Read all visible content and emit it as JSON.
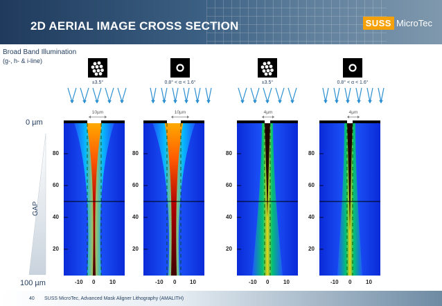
{
  "header": {
    "title": "2D AERIAL IMAGE CROSS SECTION",
    "logo_suss": "SUSS",
    "logo_micro": "MicroTec"
  },
  "illumination": {
    "line1": "Broad Band Illumination",
    "line2": "(g-, h- & i-line)"
  },
  "gap_axis": {
    "top_label": "0 µm",
    "bottom_label": "100 µm",
    "name": "GAP"
  },
  "columns": [
    {
      "aperture": "multi-spot-aperture",
      "angle": "±3.5°",
      "slit": "10µm",
      "beam": "wide"
    },
    {
      "aperture": "ring-aperture",
      "angle": "0.8° < α < 1.6°",
      "slit": "10µm",
      "beam": "wide"
    },
    {
      "aperture": "multi-spot-aperture",
      "angle": "±3.5°",
      "slit": "4µm",
      "beam": "narrow"
    },
    {
      "aperture": "ring-aperture",
      "angle": "0.8° < α < 1.6°",
      "slit": "4µm",
      "beam": "narrow"
    }
  ],
  "y_ticks": [
    "80",
    "60",
    "40",
    "20"
  ],
  "x_ticks": [
    "-10",
    "0",
    "10"
  ],
  "footer": {
    "page": "40",
    "text": "SUSS MicroTec, Advanced Mask Aligner Lithography (AMALITH)"
  },
  "colors": {
    "accent": "#f5a20a",
    "brand": "#1f3a5c",
    "field": "#1f5bff"
  }
}
